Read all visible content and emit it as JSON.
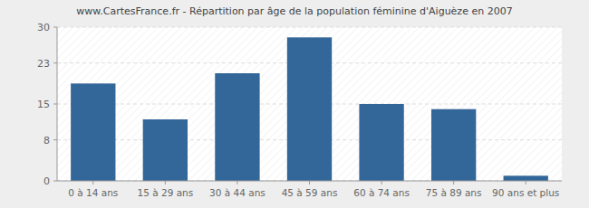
{
  "chart_data": {
    "type": "bar",
    "title": "www.CartesFrance.fr - Répartition par âge de la population féminine d'Aiguèze en 2007",
    "categories": [
      "0 à 14 ans",
      "15 à 29 ans",
      "30 à 44 ans",
      "45 à 59 ans",
      "60 à 74 ans",
      "75 à 89 ans",
      "90 ans et plus"
    ],
    "values": [
      19,
      12,
      21,
      28,
      15,
      14,
      1
    ],
    "color": "#336699",
    "ylim": [
      0,
      30
    ],
    "yticks": [
      0,
      8,
      15,
      23,
      30
    ],
    "grid": true
  }
}
